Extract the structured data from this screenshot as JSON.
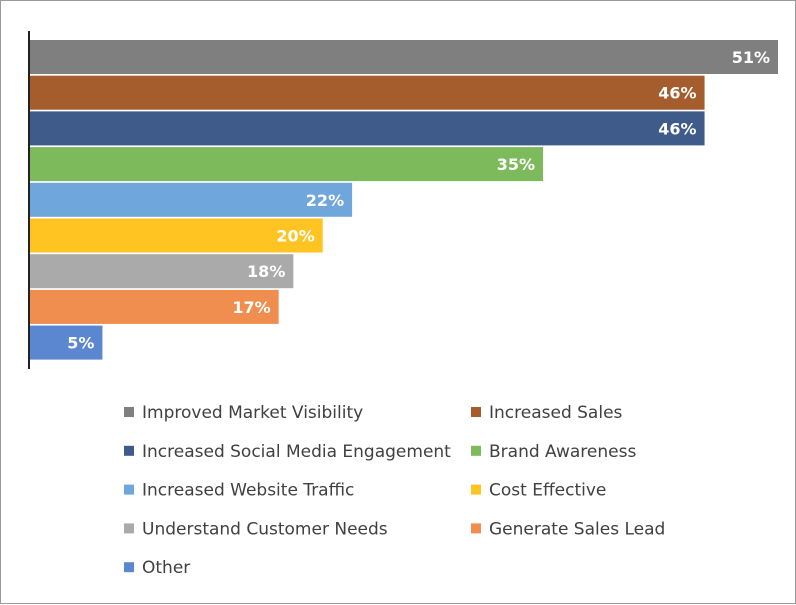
{
  "chart_data": {
    "type": "bar",
    "orientation": "horizontal",
    "categories": [
      "Improved Market Visibility",
      "Increased Sales",
      "Increased Social Media Engagement",
      "Brand Awareness",
      "Increased Website Traffic",
      "Cost Effective",
      "Understand Customer Needs",
      "Generate Sales Lead",
      "Other"
    ],
    "values": [
      51,
      46,
      46,
      35,
      22,
      20,
      18,
      17,
      5
    ],
    "value_labels": [
      "51%",
      "46%",
      "46%",
      "35%",
      "22%",
      "20%",
      "18%",
      "17%",
      "5%"
    ],
    "colors": [
      "#7f7f7f",
      "#a65d2e",
      "#3e5b8a",
      "#7dba5c",
      "#6fa6dc",
      "#ffc421",
      "#aaaaaa",
      "#ef8e4f",
      "#5b87d0"
    ],
    "title": "",
    "xlabel": "",
    "ylabel": "",
    "xlim": [
      0,
      51
    ],
    "grid": false,
    "legend_position": "bottom"
  }
}
